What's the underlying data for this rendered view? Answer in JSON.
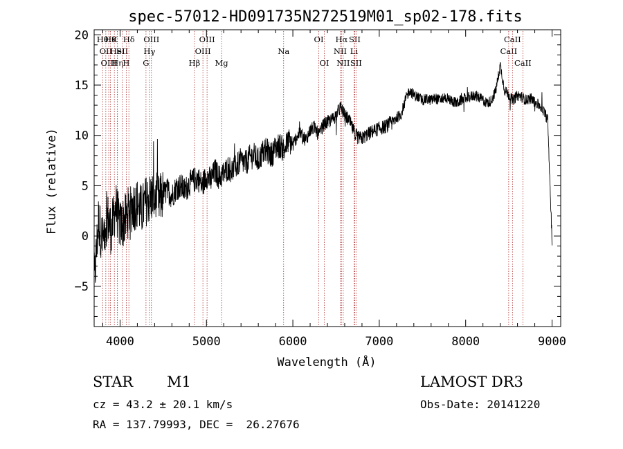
{
  "chart_data": {
    "type": "line",
    "title": "spec-57012-HD091735N272519M01_sp02-178.fits",
    "xlabel": "Wavelength (Å)",
    "ylabel": "Flux (relative)",
    "xlim": [
      3700,
      9100
    ],
    "ylim": [
      -9,
      20.5
    ],
    "xticks": [
      4000,
      5000,
      6000,
      7000,
      8000,
      9000
    ],
    "yticks": [
      -5,
      0,
      5,
      10,
      15,
      20
    ],
    "series": [
      {
        "name": "flux",
        "x": [
          3700,
          3750,
          3800,
          3850,
          3900,
          3950,
          4000,
          4050,
          4100,
          4150,
          4200,
          4250,
          4300,
          4350,
          4400,
          4450,
          4500,
          4550,
          4600,
          4650,
          4700,
          4750,
          4800,
          4850,
          4900,
          4950,
          5000,
          5050,
          5100,
          5150,
          5200,
          5250,
          5300,
          5350,
          5400,
          5450,
          5500,
          5550,
          5600,
          5650,
          5700,
          5750,
          5800,
          5850,
          5900,
          5950,
          6000,
          6050,
          6100,
          6150,
          6200,
          6250,
          6300,
          6350,
          6400,
          6450,
          6500,
          6550,
          6600,
          6650,
          6700,
          6750,
          6800,
          6850,
          6900,
          6950,
          7000,
          7050,
          7100,
          7150,
          7200,
          7250,
          7300,
          7350,
          7400,
          7450,
          7500,
          7550,
          7600,
          7650,
          7700,
          7750,
          7800,
          7850,
          7900,
          7950,
          8000,
          8050,
          8100,
          8150,
          8200,
          8250,
          8300,
          8350,
          8400,
          8450,
          8500,
          8550,
          8600,
          8650,
          8700,
          8750,
          8800,
          8850,
          8900,
          8950,
          9000
        ],
        "values": [
          -5.0,
          1.5,
          -0.5,
          2.0,
          0.5,
          3.0,
          1.0,
          1.5,
          2.5,
          3.0,
          3.2,
          2.5,
          3.5,
          3.8,
          4.0,
          3.5,
          4.2,
          4.5,
          4.0,
          4.8,
          5.0,
          4.5,
          5.2,
          5.5,
          5.8,
          5.0,
          6.0,
          5.5,
          6.5,
          5.8,
          6.2,
          6.8,
          6.5,
          7.0,
          7.5,
          7.2,
          7.8,
          8.0,
          7.5,
          8.3,
          8.5,
          8.0,
          8.8,
          9.0,
          8.5,
          9.5,
          9.0,
          10.0,
          10.2,
          9.5,
          10.5,
          10.8,
          10.0,
          11.0,
          11.3,
          11.5,
          12.0,
          12.8,
          12.0,
          11.5,
          10.5,
          9.8,
          9.7,
          10.0,
          10.3,
          10.5,
          10.7,
          10.8,
          11.0,
          11.3,
          11.8,
          12.0,
          13.5,
          14.5,
          14.0,
          13.8,
          13.5,
          13.6,
          13.5,
          13.7,
          13.5,
          13.8,
          13.6,
          13.4,
          13.2,
          13.5,
          13.7,
          13.8,
          14.0,
          13.8,
          13.5,
          13.2,
          13.5,
          14.5,
          17.0,
          14.5,
          14.0,
          13.5,
          14.0,
          13.8,
          13.5,
          13.7,
          13.3,
          13.0,
          12.5,
          11.5,
          -0.5
        ]
      }
    ],
    "line_marks": [
      {
        "wl": 3798,
        "row": 1,
        "text": "Hθ"
      },
      {
        "wl": 3835,
        "row": 2,
        "text": "OII"
      },
      {
        "wl": 3869,
        "row": 3,
        "text": "OIII"
      },
      {
        "wl": 3889,
        "row": 1,
        "text": "Hθ"
      },
      {
        "wl": 3934,
        "row": 1,
        "text": "K"
      },
      {
        "wl": 3969,
        "row": 3,
        "text": "Hη"
      },
      {
        "wl": 3970,
        "row": 2,
        "text": "HeI"
      },
      {
        "wl": 4026,
        "row": 2,
        "text": "SII"
      },
      {
        "wl": 4072,
        "row": 3,
        "text": "H"
      },
      {
        "wl": 4102,
        "row": 1,
        "text": "Hδ"
      },
      {
        "wl": 4300,
        "row": 3,
        "text": "G"
      },
      {
        "wl": 4340,
        "row": 2,
        "text": "Hγ"
      },
      {
        "wl": 4363,
        "row": 1,
        "text": "OIII"
      },
      {
        "wl": 4861,
        "row": 3,
        "text": "Hβ"
      },
      {
        "wl": 4959,
        "row": 2,
        "text": "OIII"
      },
      {
        "wl": 5007,
        "row": 1,
        "text": "OIII"
      },
      {
        "wl": 5175,
        "row": 3,
        "text": "Mg"
      },
      {
        "wl": 5893,
        "row": 2,
        "text": "Na"
      },
      {
        "wl": 6300,
        "row": 1,
        "text": "OI"
      },
      {
        "wl": 6364,
        "row": 3,
        "text": "OI"
      },
      {
        "wl": 6548,
        "row": 2,
        "text": "NII"
      },
      {
        "wl": 6563,
        "row": 1,
        "text": "Hα"
      },
      {
        "wl": 6583,
        "row": 3,
        "text": "NII"
      },
      {
        "wl": 6708,
        "row": 2,
        "text": "Li"
      },
      {
        "wl": 6716,
        "row": 1,
        "text": "SII"
      },
      {
        "wl": 6731,
        "row": 3,
        "text": "SII"
      },
      {
        "wl": 8498,
        "row": 2,
        "text": "CaII"
      },
      {
        "wl": 8542,
        "row": 1,
        "text": "CaII"
      },
      {
        "wl": 8662,
        "row": 3,
        "text": "CaII"
      }
    ]
  },
  "info": {
    "class_label": "STAR",
    "subclass": "M1",
    "survey": "LAMOST DR3",
    "cz": "cz = 43.2 ± 20.1 km/s",
    "obsdate": "Obs-Date: 20141220",
    "radec": "RA = 137.79993, DEC =  26.27676"
  },
  "colors": {
    "axis": "#000000",
    "line_marker": "#b03030",
    "spectrum": "#000000"
  }
}
